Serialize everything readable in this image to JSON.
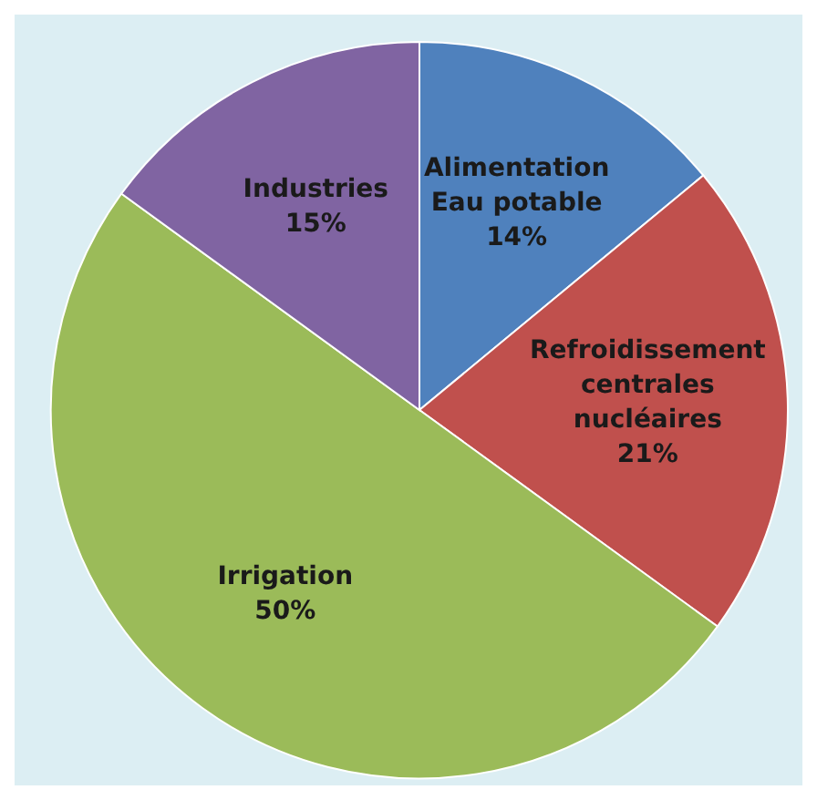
{
  "chart_data": {
    "type": "pie",
    "categories": [
      "Alimentation Eau potable",
      "Refroidissement centrales nucléaires",
      "Irrigation",
      "Industries"
    ],
    "values": [
      14,
      21,
      50,
      15
    ],
    "colors": [
      "#4f81bd",
      "#c0504d",
      "#9bbb59",
      "#8064a2"
    ],
    "value_labels": [
      "14%",
      "21%",
      "50%",
      "15%"
    ]
  }
}
